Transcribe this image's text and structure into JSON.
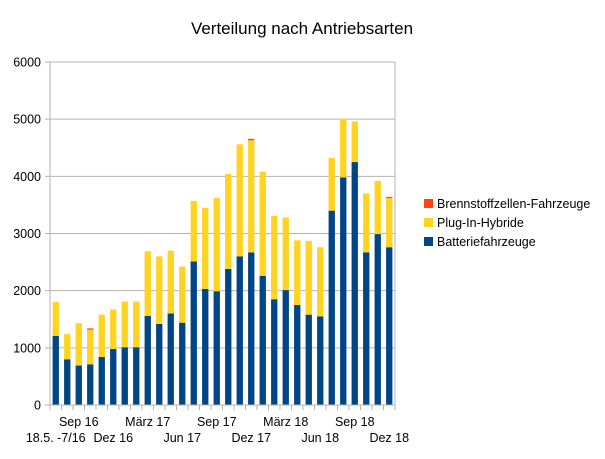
{
  "chart_data": {
    "type": "bar",
    "stacked": true,
    "title": "Verteilung nach Antriebsarten",
    "xlabel": "",
    "ylabel": "",
    "ylim": [
      0,
      6000
    ],
    "yticks": [
      0,
      1000,
      2000,
      3000,
      4000,
      5000,
      6000
    ],
    "grid": true,
    "legend_position": "right",
    "categories": [
      "18.5.-7/16",
      "Aug 16",
      "Sep 16",
      "Okt 16",
      "Nov 16",
      "Dez 16",
      "Jan 17",
      "Feb 17",
      "März 17",
      "Apr 17",
      "Mai 17",
      "Jun 17",
      "Jul 17",
      "Aug 17",
      "Sep 17",
      "Okt 17",
      "Nov 17",
      "Dez 17",
      "Jan 18",
      "Feb 18",
      "März 18",
      "Apr 18",
      "Mai 18",
      "Jun 18",
      "Jul 18",
      "Aug 18",
      "Sep 18",
      "Okt 18",
      "Nov 18",
      "Dez 18"
    ],
    "xtick_labels": [
      {
        "text": "18.5. -7/16",
        "row": 2,
        "index": 0
      },
      {
        "text": "Sep 16",
        "row": 1,
        "index": 2
      },
      {
        "text": "Dez 16",
        "row": 2,
        "index": 5
      },
      {
        "text": "März 17",
        "row": 1,
        "index": 8
      },
      {
        "text": "Jun 17",
        "row": 2,
        "index": 11
      },
      {
        "text": "Sep 17",
        "row": 1,
        "index": 14
      },
      {
        "text": "Dez 17",
        "row": 2,
        "index": 17
      },
      {
        "text": "März 18",
        "row": 1,
        "index": 20
      },
      {
        "text": "Jun 18",
        "row": 2,
        "index": 23
      },
      {
        "text": "Sep 18",
        "row": 1,
        "index": 26
      },
      {
        "text": "Dez 18",
        "row": 2,
        "index": 29
      }
    ],
    "series": [
      {
        "name": "Batteriefahrzeuge",
        "color": "#004586",
        "values": [
          1210,
          800,
          690,
          710,
          840,
          980,
          1010,
          1010,
          1560,
          1420,
          1600,
          1440,
          2510,
          2030,
          1990,
          2380,
          2600,
          2670,
          2260,
          1850,
          2010,
          1750,
          1580,
          1550,
          3400,
          3980,
          4250,
          2670,
          2990,
          2760
        ]
      },
      {
        "name": "Plug-In-Hybride",
        "color": "#ffd320",
        "values": [
          590,
          440,
          740,
          610,
          740,
          690,
          800,
          800,
          1130,
          1180,
          1100,
          980,
          1060,
          1420,
          1630,
          1660,
          1960,
          1960,
          1820,
          1460,
          1270,
          1130,
          1290,
          1210,
          920,
          1030,
          710,
          1030,
          930,
          860
        ]
      },
      {
        "name": "Brennstoffzellen-Fahrzeuge",
        "color": "#ff420e",
        "values": [
          0,
          0,
          0,
          20,
          0,
          0,
          0,
          0,
          0,
          0,
          0,
          0,
          0,
          0,
          0,
          0,
          0,
          25,
          0,
          0,
          0,
          0,
          0,
          0,
          0,
          0,
          0,
          0,
          0,
          20
        ]
      }
    ],
    "legend_order": [
      "Brennstoffzellen-Fahrzeuge",
      "Plug-In-Hybride",
      "Batteriefahrzeuge"
    ]
  },
  "colors": {
    "grid": "#b3b3b3",
    "axis": "#b3b3b3",
    "background": "#ffffff"
  }
}
